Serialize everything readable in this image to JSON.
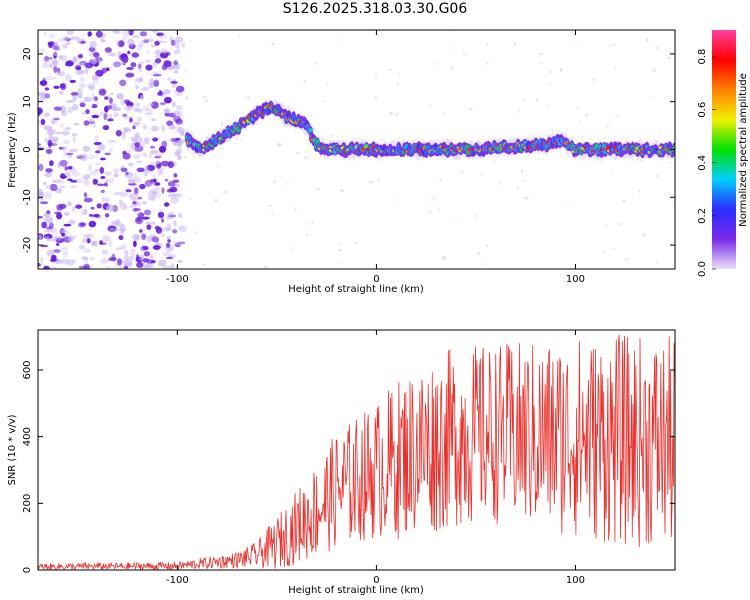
{
  "title": "S126.2025.318.03.30.G06",
  "colors": {
    "snr_line": "#e8302c",
    "signal_blob": "#6a1ee0",
    "frame": "#000000"
  },
  "chart_data": [
    {
      "type": "heatmap",
      "name": "spectrogram",
      "xlabel": "Height of straight line (km)",
      "ylabel": "Frequency (Hz)",
      "xlim": [
        -170,
        150
      ],
      "ylim": [
        -25,
        25
      ],
      "x_ticks": [
        -100,
        0,
        100
      ],
      "x_tick_labels": [
        "-100",
        "0",
        "100"
      ],
      "y_ticks": [
        -20,
        -10,
        0,
        10,
        20
      ],
      "y_tick_labels": [
        "-20",
        "-10",
        "0",
        "10",
        "20"
      ],
      "noise_region_x": [
        -170,
        -97
      ],
      "ridge": [
        {
          "x": -95,
          "f": 2
        },
        {
          "x": -88,
          "f": 0
        },
        {
          "x": -80,
          "f": 2
        },
        {
          "x": -72,
          "f": 4
        },
        {
          "x": -65,
          "f": 6
        },
        {
          "x": -58,
          "f": 8
        },
        {
          "x": -52,
          "f": 9
        },
        {
          "x": -45,
          "f": 7
        },
        {
          "x": -40,
          "f": 6
        },
        {
          "x": -35,
          "f": 5
        },
        {
          "x": -30,
          "f": 1
        },
        {
          "x": -25,
          "f": 0
        },
        {
          "x": 0,
          "f": 0
        },
        {
          "x": 50,
          "f": 0
        },
        {
          "x": 85,
          "f": 1
        },
        {
          "x": 92,
          "f": 2
        },
        {
          "x": 100,
          "f": 0
        },
        {
          "x": 150,
          "f": 0
        }
      ],
      "colorbar": {
        "label": "Normalized spectral amplitude",
        "range": [
          0.0,
          0.9
        ],
        "ticks": [
          0.0,
          0.2,
          0.4,
          0.6,
          0.8
        ],
        "tick_labels": [
          "0.0",
          "0.2",
          "0.4",
          "0.6",
          "0.8"
        ],
        "stops": [
          "#e9e0fb",
          "#7a2ae6",
          "#2a2cff",
          "#00d0ff",
          "#00e000",
          "#f0f000",
          "#ff8000",
          "#ff0000",
          "#ff40a0"
        ]
      }
    },
    {
      "type": "line",
      "name": "snr",
      "xlabel": "Height of straight line (km)",
      "ylabel": "SNR (10 * v/v)",
      "xlim": [
        -170,
        150
      ],
      "ylim": [
        0,
        720
      ],
      "x_ticks": [
        -100,
        0,
        100
      ],
      "x_tick_labels": [
        "-100",
        "0",
        "100"
      ],
      "y_ticks": [
        0,
        200,
        400,
        600
      ],
      "y_tick_labels": [
        "0",
        "200",
        "400",
        "600"
      ],
      "envelope": [
        {
          "x": -170,
          "mean": 10,
          "spread": 6
        },
        {
          "x": -100,
          "mean": 12,
          "spread": 8
        },
        {
          "x": -90,
          "mean": 18,
          "spread": 10
        },
        {
          "x": -70,
          "mean": 30,
          "spread": 15
        },
        {
          "x": -60,
          "mean": 45,
          "spread": 25
        },
        {
          "x": -50,
          "mean": 80,
          "spread": 50
        },
        {
          "x": -40,
          "mean": 130,
          "spread": 70
        },
        {
          "x": -30,
          "mean": 180,
          "spread": 90
        },
        {
          "x": -20,
          "mean": 240,
          "spread": 110
        },
        {
          "x": -10,
          "mean": 270,
          "spread": 120
        },
        {
          "x": 0,
          "mean": 300,
          "spread": 130
        },
        {
          "x": 10,
          "mean": 330,
          "spread": 150
        },
        {
          "x": 20,
          "mean": 360,
          "spread": 160
        },
        {
          "x": 30,
          "mean": 380,
          "spread": 170
        },
        {
          "x": 40,
          "mean": 400,
          "spread": 170
        },
        {
          "x": 60,
          "mean": 410,
          "spread": 170
        },
        {
          "x": 80,
          "mean": 400,
          "spread": 180
        },
        {
          "x": 100,
          "mean": 400,
          "spread": 190
        },
        {
          "x": 120,
          "mean": 390,
          "spread": 200
        },
        {
          "x": 150,
          "mean": 380,
          "spread": 200
        }
      ]
    }
  ]
}
